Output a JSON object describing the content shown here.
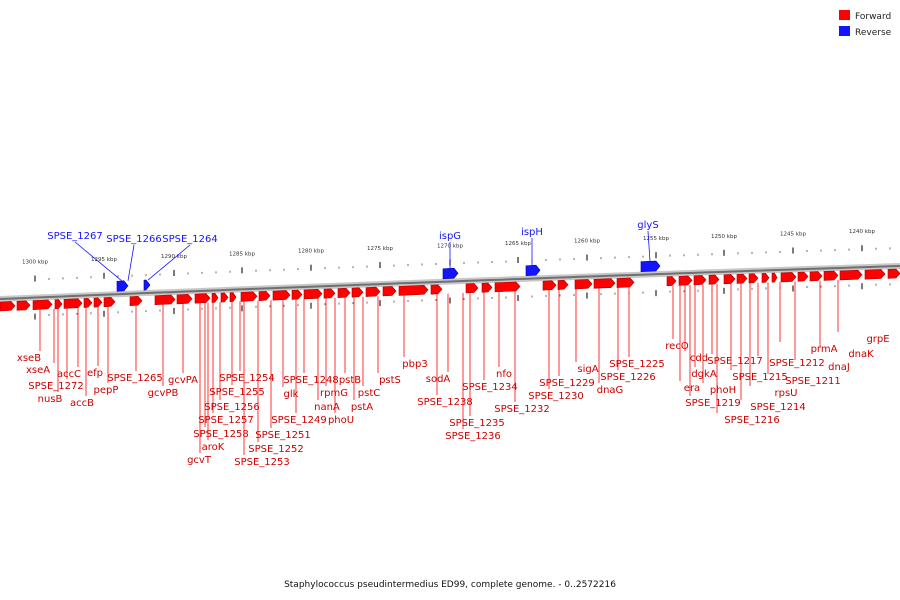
{
  "colors": {
    "forward": "#ff0000",
    "reverse": "#1414ff",
    "backbone": "#909090",
    "forward_dark": "#b00000",
    "reverse_dark": "#0000a0"
  },
  "legend": [
    {
      "label": "Forward",
      "color": "#ff0000"
    },
    {
      "label": "Reverse",
      "color": "#1414ff"
    }
  ],
  "caption": "Staphylococcus pseudintermedius ED99, complete genome. - 0..2572216",
  "ticks": [
    "1300 kbp",
    "1295 kbp",
    "1290 kbp",
    "1285 kbp",
    "1280 kbp",
    "1275 kbp",
    "1270 kbp",
    "1265 kbp",
    "1260 kbp",
    "1255 kbp",
    "1250 kbp",
    "1245 kbp",
    "1240 kbp"
  ],
  "reverse_genes": [
    "SPSE_1267",
    "SPSE_1266",
    "SPSE_1264",
    "ispG",
    "ispH",
    "glyS"
  ],
  "forward_genes": [
    "xseB",
    "xseA",
    "SPSE_1272",
    "nusB",
    "accC",
    "accB",
    "efp",
    "pepP",
    "SPSE_1265",
    "gcvPB",
    "gcvPA",
    "SPSE_1258",
    "gcvT",
    "SPSE_1257",
    "aroK",
    "SPSE_1256",
    "SPSE_1255",
    "SPSE_1254",
    "SPSE_1253",
    "SPSE_1252",
    "SPSE_1251",
    "glk",
    "SPSE_1249",
    "SPSE_1248",
    "nanA",
    "rpmG",
    "phoU",
    "pstB",
    "pstA",
    "pstC",
    "pstS",
    "pbp3",
    "SPSE_1238",
    "sodA",
    "SPSE_1236",
    "SPSE_1235",
    "SPSE_1234",
    "nfo",
    "SPSE_1232",
    "SPSE_1230",
    "SPSE_1229",
    "sigA",
    "dnaG",
    "SPSE_1226",
    "SPSE_1225",
    "recO",
    "era",
    "cdd",
    "SPSE_1219",
    "dgkA",
    "phoH",
    "SPSE_1217",
    "SPSE_1216",
    "SPSE_1215",
    "SPSE_1214",
    "rpsU",
    "SPSE_1212",
    "SPSE_1211",
    "prmA",
    "dnaJ",
    "dnaK",
    "grpE"
  ]
}
